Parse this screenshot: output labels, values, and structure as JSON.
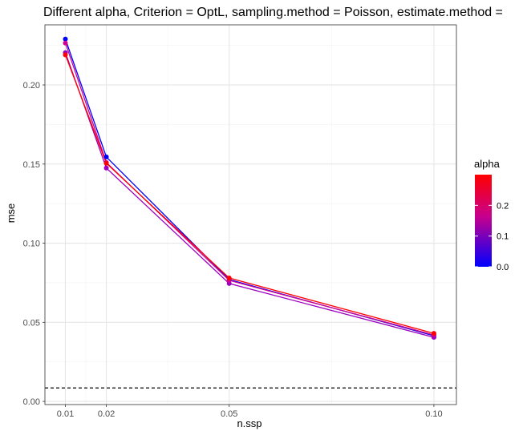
{
  "chart_data": {
    "type": "line",
    "title": "Different alpha, Criterion = OptL, sampling.method = Poisson, estimate.method = ",
    "xlabel": "n.ssp",
    "ylabel": "mse",
    "x": [
      0.01,
      0.02,
      0.05,
      0.1
    ],
    "x_tick_labels": [
      "0.01",
      "0.02",
      "0.05",
      "0.10"
    ],
    "y_ticks": [
      0.0,
      0.05,
      0.1,
      0.15,
      0.2
    ],
    "y_tick_labels": [
      "0.00",
      "0.05",
      "0.10",
      "0.15",
      "0.20"
    ],
    "xlim": [
      0.005,
      0.1055
    ],
    "ylim": [
      -0.002,
      0.238
    ],
    "x_minor_grid": [
      0.015,
      0.035,
      0.075
    ],
    "y_minor_grid": [
      0.025,
      0.075,
      0.125,
      0.175,
      0.225
    ],
    "grid": true,
    "series": [
      {
        "alpha": 0.0,
        "color": "#0000ff",
        "values": [
          0.229,
          0.1545,
          0.077,
          0.0415
        ]
      },
      {
        "alpha": 0.1,
        "color": "#9b00c0",
        "values": [
          0.2205,
          0.1475,
          0.0745,
          0.0405
        ]
      },
      {
        "alpha": 0.2,
        "color": "#d10090",
        "values": [
          0.2265,
          0.151,
          0.0765,
          0.042
        ]
      },
      {
        "alpha": 0.3,
        "color": "#ff0000",
        "values": [
          0.219,
          0.1505,
          0.078,
          0.043
        ]
      }
    ],
    "hline": {
      "y": 0.0085,
      "style": "dashed",
      "color": "#000000"
    },
    "legend": {
      "title": "alpha",
      "type": "colorbar",
      "placement": "right",
      "range": [
        0.0,
        0.3
      ],
      "ticks": [
        0.0,
        0.1,
        0.2
      ],
      "tick_labels": [
        "0.0",
        "0.1",
        "0.2"
      ],
      "low_color": "#0000ff",
      "mid_color": "#c8008c",
      "high_color": "#ff0000"
    }
  }
}
